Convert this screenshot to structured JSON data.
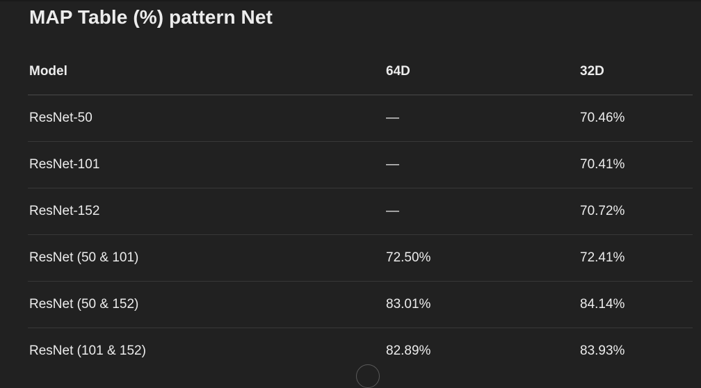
{
  "title": "MAP Table (%) pattern Net",
  "table": {
    "headers": [
      "Model",
      "64D",
      "32D"
    ],
    "rows": [
      [
        "ResNet-50",
        "—",
        "70.46%"
      ],
      [
        "ResNet-101",
        "—",
        "70.41%"
      ],
      [
        "ResNet-152",
        "—",
        "70.72%"
      ],
      [
        "ResNet (50 & 101)",
        "72.50%",
        "72.41%"
      ],
      [
        "ResNet (50 & 152)",
        "83.01%",
        "84.14%"
      ],
      [
        "ResNet (101 & 152)",
        "82.89%",
        "83.93%"
      ]
    ]
  }
}
